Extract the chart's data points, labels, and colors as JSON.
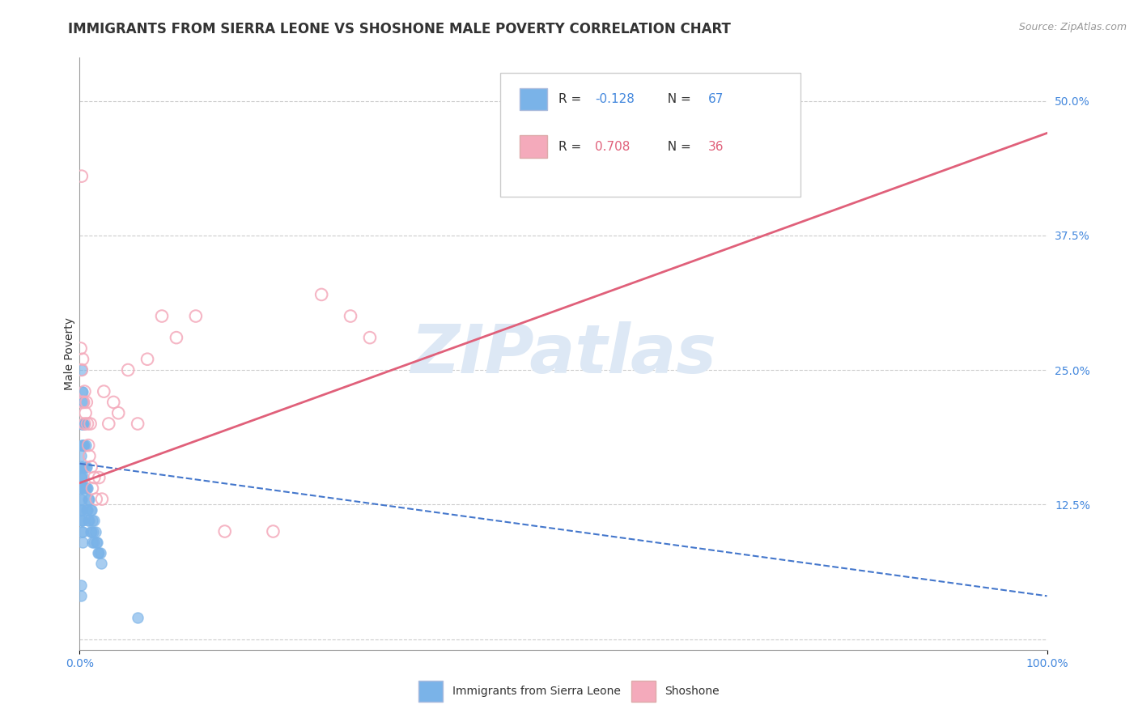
{
  "title": "IMMIGRANTS FROM SIERRA LEONE VS SHOSHONE MALE POVERTY CORRELATION CHART",
  "source_text": "Source: ZipAtlas.com",
  "ylabel": "Male Poverty",
  "xlim": [
    0.0,
    1.0
  ],
  "ylim": [
    -0.01,
    0.54
  ],
  "ytick_vals": [
    0.0,
    0.125,
    0.25,
    0.375,
    0.5
  ],
  "ytick_labels": [
    "",
    "12.5%",
    "25.0%",
    "37.5%",
    "50.0%"
  ],
  "xtick_vals": [
    0.0,
    1.0
  ],
  "xtick_labels": [
    "0.0%",
    "100.0%"
  ],
  "color1": "#7ab3e8",
  "color2": "#f4aabb",
  "trendline1_color": "#4477cc",
  "trendline2_color": "#e0607a",
  "background_color": "#ffffff",
  "watermark_text": "ZIPatlas",
  "series1_name": "Immigrants from Sierra Leone",
  "series2_name": "Shoshone",
  "legend_r1_label": "R = ",
  "legend_r1_val": "-0.128",
  "legend_n1_label": "N = ",
  "legend_n1_val": "67",
  "legend_r2_label": "R = ",
  "legend_r2_val": "0.708",
  "legend_n2_label": "N = ",
  "legend_n2_val": "36",
  "title_fontsize": 12,
  "tick_fontsize": 10,
  "axis_label_fontsize": 10,
  "scatter1_x": [
    0.001,
    0.001,
    0.001,
    0.001,
    0.001,
    0.002,
    0.002,
    0.002,
    0.002,
    0.002,
    0.002,
    0.002,
    0.003,
    0.003,
    0.003,
    0.003,
    0.003,
    0.003,
    0.004,
    0.004,
    0.004,
    0.004,
    0.005,
    0.005,
    0.005,
    0.005,
    0.006,
    0.006,
    0.006,
    0.007,
    0.007,
    0.007,
    0.008,
    0.008,
    0.009,
    0.009,
    0.01,
    0.01,
    0.011,
    0.011,
    0.012,
    0.012,
    0.013,
    0.013,
    0.014,
    0.015,
    0.015,
    0.016,
    0.017,
    0.018,
    0.019,
    0.02,
    0.021,
    0.022,
    0.001,
    0.001,
    0.001,
    0.002,
    0.002,
    0.002,
    0.002,
    0.003,
    0.003,
    0.003,
    0.001,
    0.001,
    0.06
  ],
  "scatter1_y": [
    0.17,
    0.16,
    0.15,
    0.14,
    0.12,
    0.25,
    0.23,
    0.2,
    0.18,
    0.16,
    0.15,
    0.14,
    0.23,
    0.22,
    0.2,
    0.18,
    0.16,
    0.14,
    0.22,
    0.2,
    0.18,
    0.15,
    0.2,
    0.18,
    0.16,
    0.14,
    0.18,
    0.16,
    0.14,
    0.16,
    0.14,
    0.12,
    0.14,
    0.12,
    0.13,
    0.11,
    0.13,
    0.11,
    0.12,
    0.1,
    0.12,
    0.1,
    0.11,
    0.09,
    0.1,
    0.11,
    0.09,
    0.1,
    0.09,
    0.09,
    0.08,
    0.08,
    0.08,
    0.07,
    0.13,
    0.12,
    0.11,
    0.13,
    0.12,
    0.11,
    0.1,
    0.11,
    0.1,
    0.09,
    0.05,
    0.04,
    0.02
  ],
  "scatter2_x": [
    0.001,
    0.002,
    0.003,
    0.003,
    0.004,
    0.005,
    0.005,
    0.006,
    0.007,
    0.008,
    0.009,
    0.01,
    0.011,
    0.012,
    0.013,
    0.015,
    0.017,
    0.02,
    0.023,
    0.025,
    0.03,
    0.035,
    0.04,
    0.05,
    0.06,
    0.07,
    0.085,
    0.1,
    0.12,
    0.15,
    0.2,
    0.25,
    0.28,
    0.3,
    0.002,
    0.7
  ],
  "scatter2_y": [
    0.27,
    0.25,
    0.22,
    0.26,
    0.22,
    0.2,
    0.23,
    0.21,
    0.22,
    0.2,
    0.18,
    0.17,
    0.2,
    0.16,
    0.14,
    0.15,
    0.13,
    0.15,
    0.13,
    0.23,
    0.2,
    0.22,
    0.21,
    0.25,
    0.2,
    0.26,
    0.3,
    0.28,
    0.3,
    0.1,
    0.1,
    0.32,
    0.3,
    0.28,
    0.43,
    0.48
  ],
  "trendline1_x": [
    0.0,
    1.0
  ],
  "trendline1_y": [
    0.163,
    0.04
  ],
  "trendline2_x": [
    0.0,
    1.0
  ],
  "trendline2_y": [
    0.145,
    0.47
  ]
}
